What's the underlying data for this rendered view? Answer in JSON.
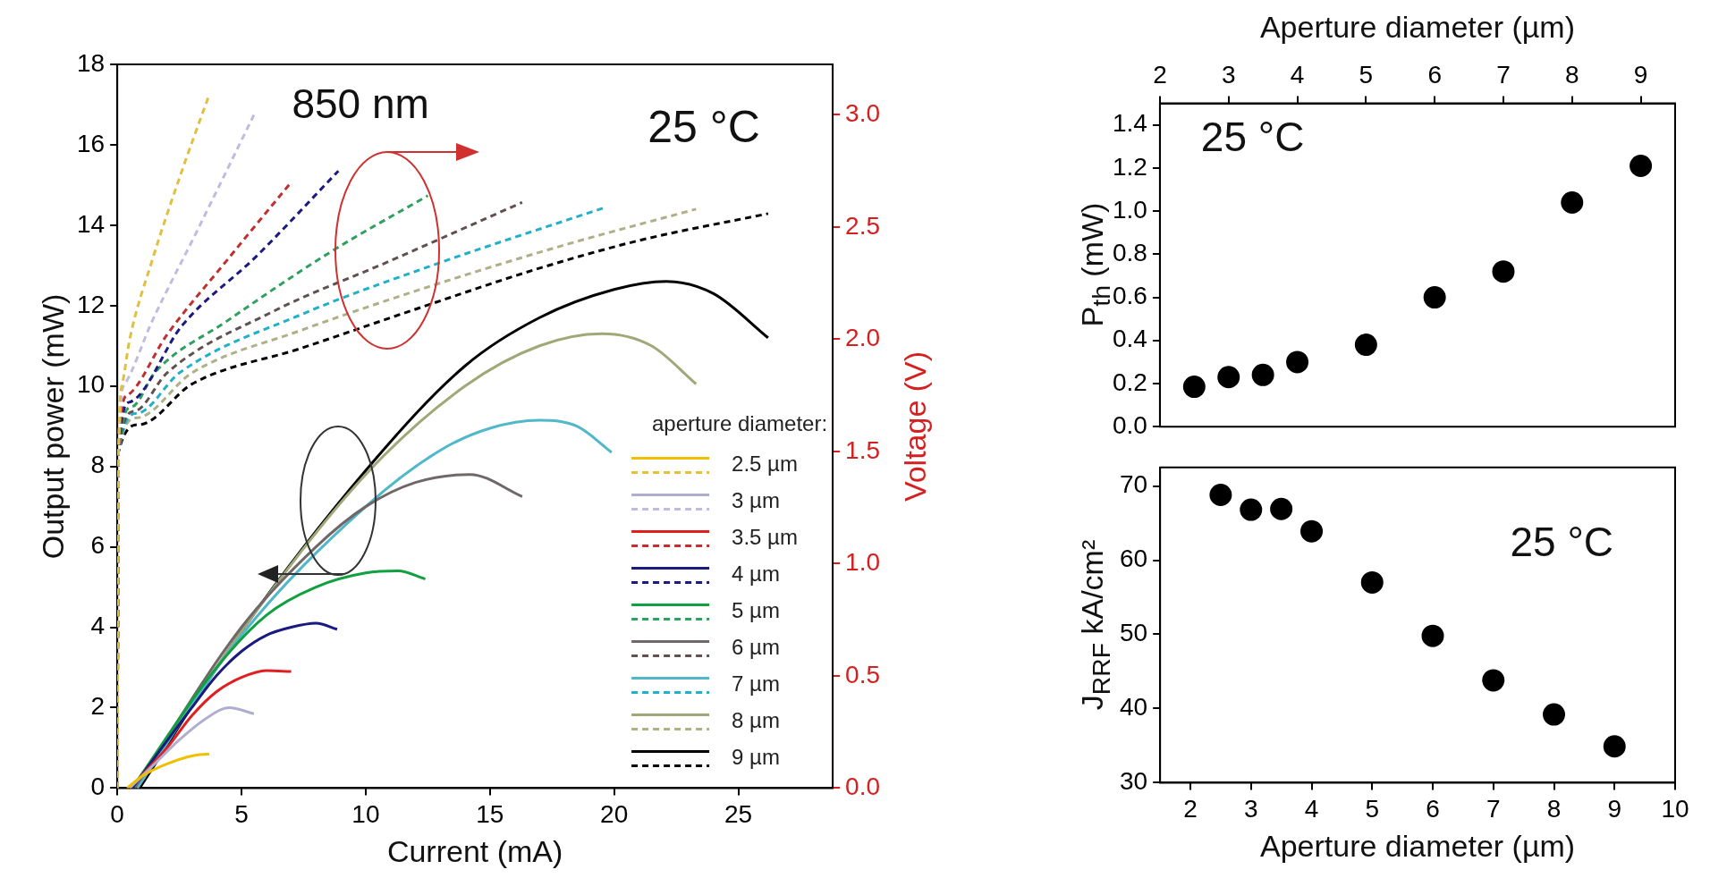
{
  "chart_data": [
    {
      "type": "line",
      "xlabel": "Current (mA)",
      "ylabel": "Output power (mW)",
      "y2label": "Voltage (V)",
      "legend_title": "aperture diameter:",
      "xlim": [
        0,
        28.8
      ],
      "xticks": [
        0,
        5,
        10,
        15,
        20,
        25
      ],
      "ylim": [
        0,
        18
      ],
      "yticks": [
        0,
        2,
        4,
        6,
        8,
        10,
        12,
        14,
        16,
        18
      ],
      "y2lim": [
        0,
        3.225
      ],
      "y2ticks": [
        {
          "value": 0,
          "label": "0.0"
        },
        {
          "value": 0.5,
          "label": "0.5"
        },
        {
          "value": 1,
          "label": "1.0"
        },
        {
          "value": 1.5,
          "label": "1.5"
        },
        {
          "value": 2,
          "label": "2.0"
        },
        {
          "value": 2.5,
          "label": "2.5"
        },
        {
          "value": 3,
          "label": "3.0"
        }
      ],
      "grid": false,
      "legend": "bottom right",
      "marker": "none",
      "annotations": [
        "850 nm",
        "25 °C"
      ],
      "series": [
        {
          "name": "2.5 µm",
          "color": "#f0c000",
          "line_style": "solid",
          "x": [
            0.4,
            1,
            2,
            3,
            3.7
          ],
          "values": [
            0,
            0.3,
            0.6,
            0.8,
            0.85
          ]
        },
        {
          "color": "#e0c040",
          "line_style": "dashed",
          "axis": "y2",
          "x": [
            0,
            0.05,
            0.2,
            0.5,
            1.4,
            2.6,
            3.7
          ],
          "values": [
            0,
            1.5,
            1.8,
            2.0,
            2.35,
            2.75,
            3.09
          ]
        },
        {
          "name": "3 µm",
          "color": "#b0aed0",
          "line_style": "solid",
          "x": [
            0.5,
            1.5,
            2.5,
            3.5,
            4.5,
            5.5
          ],
          "values": [
            0,
            0.6,
            1.2,
            1.7,
            2.0,
            1.85
          ]
        },
        {
          "color": "#c0bce0",
          "line_style": "dashed",
          "axis": "y2",
          "x": [
            0,
            0.05,
            0.3,
            1.4,
            3.2,
            5.5
          ],
          "values": [
            0,
            1.5,
            1.8,
            2.08,
            2.48,
            3.0
          ]
        },
        {
          "name": "3.5 µm",
          "color": "#e02020",
          "line_style": "solid",
          "x": [
            0.5,
            2,
            3,
            4,
            5,
            6,
            7
          ],
          "values": [
            0,
            1,
            1.8,
            2.4,
            2.75,
            2.92,
            2.9
          ]
        },
        {
          "color": "#c03030",
          "line_style": "dashed",
          "axis": "y2",
          "x": [
            0,
            0.05,
            0.4,
            2,
            4.4,
            7
          ],
          "values": [
            0,
            1.5,
            1.75,
            2.02,
            2.35,
            2.7
          ]
        },
        {
          "name": "4 µm",
          "color": "#1a1a80",
          "line_style": "solid",
          "x": [
            0.6,
            3,
            4,
            5,
            6,
            7,
            8,
            8.85
          ],
          "values": [
            0,
            2,
            2.8,
            3.4,
            3.8,
            4.0,
            4.1,
            3.95
          ]
        },
        {
          "color": "#1a1a80",
          "line_style": "dashed",
          "axis": "y2",
          "x": [
            0,
            0.05,
            0.5,
            2.6,
            5.6,
            8.9
          ],
          "values": [
            0,
            1.5,
            1.72,
            2.06,
            2.37,
            2.75
          ]
        },
        {
          "name": "5 µm",
          "color": "#10a040",
          "line_style": "solid",
          "x": [
            0.6,
            4,
            6,
            8,
            10,
            11.3,
            12.4
          ],
          "values": [
            0,
            3,
            4.3,
            5.0,
            5.35,
            5.4,
            5.2
          ]
        },
        {
          "color": "#30a060",
          "line_style": "dashed",
          "axis": "y2",
          "x": [
            0,
            0.05,
            0.6,
            1.5,
            4.4,
            8.6,
            12.5
          ],
          "values": [
            0,
            1.5,
            1.7,
            1.85,
            2.08,
            2.39,
            2.64
          ]
        },
        {
          "name": "6 µm",
          "color": "#706868",
          "line_style": "solid",
          "x": [
            0.7,
            5,
            8,
            10,
            12,
            14.2,
            16.3
          ],
          "values": [
            0,
            4.0,
            6.0,
            7.0,
            7.6,
            7.8,
            7.25
          ]
        },
        {
          "color": "#605050",
          "line_style": "dashed",
          "axis": "y2",
          "x": [
            0,
            0.05,
            0.7,
            2,
            6.2,
            11,
            16.3
          ],
          "values": [
            0,
            1.5,
            1.68,
            1.85,
            2.12,
            2.35,
            2.61
          ]
        },
        {
          "name": "7 µm",
          "color": "#50b8c8",
          "line_style": "solid",
          "x": [
            0.8,
            5,
            10,
            13,
            15,
            17,
            18.5,
            19.9
          ],
          "values": [
            0,
            3.8,
            7.0,
            8.4,
            8.95,
            9.15,
            9.0,
            8.35
          ]
        },
        {
          "color": "#20b0c8",
          "line_style": "dashed",
          "axis": "y2",
          "x": [
            0,
            0.05,
            0.8,
            2.5,
            7.4,
            12.7,
            19.7
          ],
          "values": [
            0,
            1.5,
            1.67,
            1.85,
            2.11,
            2.33,
            2.59
          ]
        },
        {
          "name": "8 µm",
          "color": "#a0a878",
          "line_style": "solid",
          "x": [
            0.8,
            5,
            10,
            14,
            17,
            19.5,
            21.5,
            23.3
          ],
          "values": [
            0,
            3.9,
            7.8,
            10.0,
            11.0,
            11.3,
            11.0,
            10.05
          ]
        },
        {
          "color": "#b0b088",
          "line_style": "dashed",
          "axis": "y2",
          "x": [
            0,
            0.05,
            0.8,
            3,
            7.4,
            12.7,
            18,
            23.3
          ],
          "values": [
            0,
            1.5,
            1.65,
            1.85,
            2.04,
            2.24,
            2.42,
            2.58
          ]
        },
        {
          "name": "9 µm",
          "color": "#000000",
          "line_style": "solid",
          "x": [
            0.9,
            5,
            10,
            14,
            17,
            20,
            22.1,
            24,
            26.2
          ],
          "values": [
            0,
            3.9,
            7.9,
            10.5,
            11.7,
            12.4,
            12.6,
            12.3,
            11.2
          ]
        },
        {
          "color": "#000000",
          "line_style": "dashed",
          "axis": "y2",
          "x": [
            0,
            0.05,
            0.9,
            3,
            7.4,
            12.7,
            16.8,
            21,
            26.2
          ],
          "values": [
            0,
            1.5,
            1.62,
            1.8,
            1.96,
            2.16,
            2.31,
            2.44,
            2.56
          ]
        }
      ]
    },
    {
      "type": "scatter",
      "xlabel": "Aperture diameter (µm)",
      "ylabel": "P$_{th}$ (mW)",
      "xlim": [
        2,
        9.5
      ],
      "xticks": [
        2,
        3,
        4,
        5,
        6,
        7,
        8,
        9
      ],
      "ylim": [
        0,
        1.5
      ],
      "yticks": [
        {
          "value": 0,
          "label": "0.0"
        },
        {
          "value": 0.2,
          "label": "0.2"
        },
        {
          "value": 0.4,
          "label": "0.4"
        },
        {
          "value": 0.6,
          "label": "0.6"
        },
        {
          "value": 0.8,
          "label": "0.8"
        },
        {
          "value": 1,
          "label": "1.0"
        },
        {
          "value": 1.2,
          "label": "1.2"
        },
        {
          "value": 1.4,
          "label": "1.4"
        }
      ],
      "grid": false,
      "legend": false,
      "marker": "circle",
      "annotations": [
        "25 °C"
      ],
      "color": "#000000",
      "x": [
        2.5,
        3,
        3.5,
        4,
        5,
        6,
        7,
        8,
        9
      ],
      "values": [
        0.185,
        0.23,
        0.24,
        0.3,
        0.38,
        0.6,
        0.72,
        1.04,
        1.21
      ]
    },
    {
      "type": "scatter",
      "xlabel": "Aperture diameter (µm)",
      "ylabel": "J$_{RRF}$ kA/cm²",
      "xlim": [
        1.5,
        10
      ],
      "xticks": [
        2,
        3,
        4,
        5,
        6,
        7,
        8,
        9,
        10
      ],
      "ylim": [
        30,
        72.5
      ],
      "yticks": [
        30,
        40,
        50,
        60,
        70
      ],
      "grid": false,
      "legend": false,
      "marker": "circle",
      "annotations": [
        "25 °C"
      ],
      "color": "#000000",
      "x": [
        2.5,
        3,
        3.5,
        4,
        5,
        6,
        7,
        8,
        9
      ],
      "values": [
        68.8,
        66.8,
        66.9,
        63.9,
        57.0,
        49.8,
        43.8,
        39.2,
        34.9
      ]
    }
  ]
}
